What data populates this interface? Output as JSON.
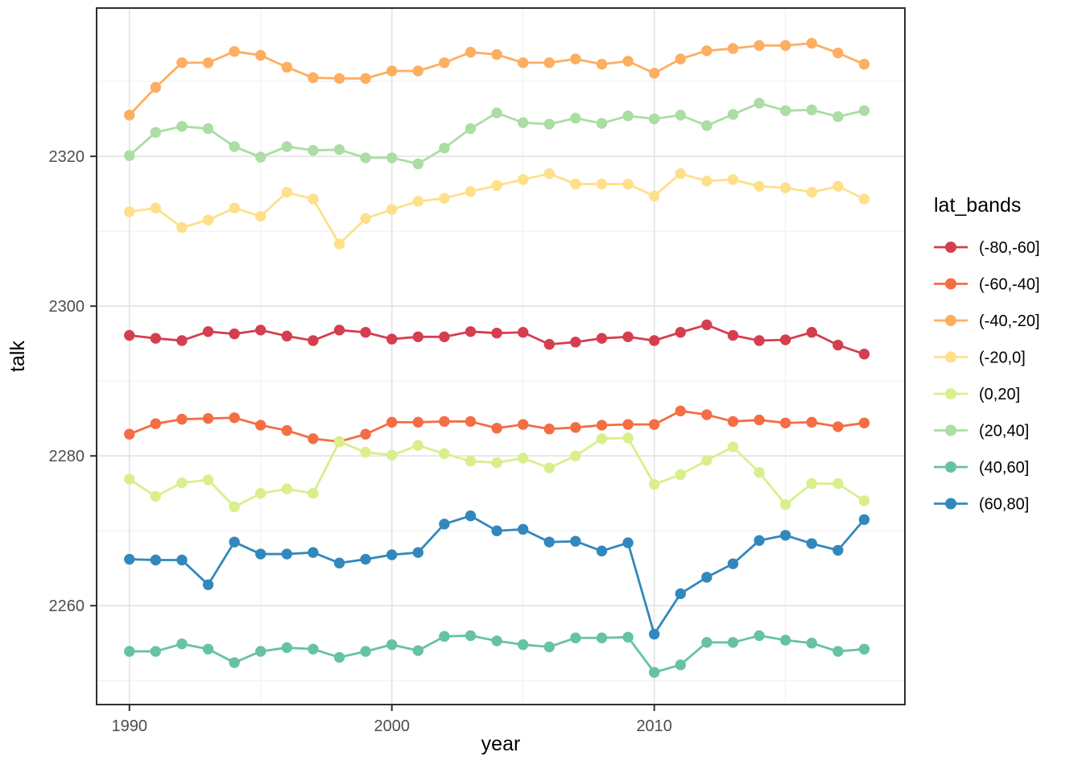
{
  "chart_data": {
    "type": "line",
    "title": "",
    "xlabel": "year",
    "ylabel": "talk",
    "legend_title": "lat_bands",
    "legend_position": "right",
    "grid": true,
    "marker": "point-on-line",
    "x": [
      1990,
      1991,
      1992,
      1993,
      1994,
      1995,
      1996,
      1997,
      1998,
      1999,
      2000,
      2001,
      2002,
      2003,
      2004,
      2005,
      2006,
      2007,
      2008,
      2009,
      2010,
      2011,
      2012,
      2013,
      2014,
      2015,
      2016,
      2017,
      2018
    ],
    "x_ticks": [
      1990,
      2000,
      2010
    ],
    "x_minor_ticks": [
      1995,
      2005,
      2015
    ],
    "y_ticks": [
      2260,
      2280,
      2300,
      2320
    ],
    "y_minor_ticks": [
      2250,
      2270,
      2290,
      2310,
      2330
    ],
    "xlim": [
      1988.75,
      2019.55
    ],
    "ylim": [
      2246.8,
      2339.8
    ],
    "series": [
      {
        "name": "(-80,-60]",
        "color": "#d53e4f",
        "values": [
          2296.1,
          2295.7,
          2295.4,
          2296.6,
          2296.3,
          2296.8,
          2296.0,
          2295.4,
          2296.8,
          2296.5,
          2295.6,
          2295.9,
          2295.9,
          2296.6,
          2296.4,
          2296.5,
          2294.9,
          2295.2,
          2295.7,
          2295.9,
          2295.4,
          2296.5,
          2297.5,
          2296.1,
          2295.4,
          2295.5,
          2296.5,
          2294.8,
          2293.6
        ]
      },
      {
        "name": "(-60,-40]",
        "color": "#f46d43",
        "values": [
          2282.9,
          2284.3,
          2284.9,
          2285.0,
          2285.1,
          2284.1,
          2283.4,
          2282.3,
          2281.9,
          2282.9,
          2284.5,
          2284.5,
          2284.6,
          2284.6,
          2283.7,
          2284.2,
          2283.6,
          2283.8,
          2284.1,
          2284.2,
          2284.2,
          2286.0,
          2285.5,
          2284.6,
          2284.8,
          2284.4,
          2284.5,
          2283.9,
          2284.4
        ]
      },
      {
        "name": "(-40,-20]",
        "color": "#fdae61",
        "values": [
          2325.5,
          2329.2,
          2332.5,
          2332.5,
          2334.0,
          2333.5,
          2331.9,
          2330.5,
          2330.4,
          2330.4,
          2331.4,
          2331.4,
          2332.5,
          2333.9,
          2333.6,
          2332.5,
          2332.5,
          2333.0,
          2332.3,
          2332.7,
          2331.1,
          2333.0,
          2334.1,
          2334.4,
          2334.8,
          2334.8,
          2335.1,
          2333.8,
          2332.3
        ]
      },
      {
        "name": "(-20,0]",
        "color": "#fee08b",
        "values": [
          2312.6,
          2313.1,
          2310.5,
          2311.5,
          2313.1,
          2312.0,
          2315.2,
          2314.3,
          2308.3,
          2311.7,
          2312.9,
          2314.0,
          2314.4,
          2315.3,
          2316.1,
          2316.9,
          2317.7,
          2316.3,
          2316.3,
          2316.3,
          2314.7,
          2317.7,
          2316.7,
          2316.9,
          2316.0,
          2315.8,
          2315.2,
          2316.0,
          2314.3
        ]
      },
      {
        "name": "(0,20]",
        "color": "#d9ef8b",
        "values": [
          2276.9,
          2274.6,
          2276.4,
          2276.8,
          2273.2,
          2275.0,
          2275.6,
          2275.0,
          2281.9,
          2280.5,
          2280.1,
          2281.4,
          2280.3,
          2279.3,
          2279.1,
          2279.7,
          2278.4,
          2280.0,
          2282.3,
          2282.4,
          2276.2,
          2277.5,
          2279.4,
          2281.2,
          2277.8,
          2273.5,
          2276.3,
          2276.3,
          2274.0
        ]
      },
      {
        "name": "(20,40]",
        "color": "#abdda4",
        "values": [
          2320.1,
          2323.2,
          2324.0,
          2323.7,
          2321.3,
          2319.9,
          2321.3,
          2320.8,
          2320.9,
          2319.8,
          2319.8,
          2319.0,
          2321.1,
          2323.7,
          2325.8,
          2324.5,
          2324.3,
          2325.1,
          2324.4,
          2325.4,
          2325.0,
          2325.5,
          2324.1,
          2325.6,
          2327.1,
          2326.1,
          2326.2,
          2325.3,
          2326.1
        ]
      },
      {
        "name": "(40,60]",
        "color": "#66c2a5",
        "values": [
          2253.9,
          2253.9,
          2254.9,
          2254.2,
          2252.4,
          2253.9,
          2254.4,
          2254.2,
          2253.1,
          2253.9,
          2254.8,
          2254.0,
          2255.9,
          2256.0,
          2255.3,
          2254.8,
          2254.5,
          2255.7,
          2255.7,
          2255.8,
          2251.1,
          2252.1,
          2255.1,
          2255.1,
          2256.0,
          2255.4,
          2255.0,
          2253.9,
          2254.2
        ]
      },
      {
        "name": "(60,80]",
        "color": "#3288bd",
        "values": [
          2266.2,
          2266.1,
          2266.1,
          2262.8,
          2268.5,
          2266.9,
          2266.9,
          2267.1,
          2265.7,
          2266.2,
          2266.8,
          2267.1,
          2270.9,
          2272.0,
          2270.0,
          2270.2,
          2268.5,
          2268.6,
          2267.3,
          2268.4,
          2256.2,
          2261.6,
          2263.8,
          2265.6,
          2268.7,
          2269.4,
          2268.3,
          2267.4,
          2271.5
        ]
      }
    ]
  },
  "style": {
    "panel_background": "#ffffff",
    "outer_background": "#ffffff",
    "panel_border_color": "#2f2f2f",
    "grid_major_color": "#e3e3e3",
    "grid_minor_color": "#f0f0f0",
    "tick_color": "#2f2f2f",
    "tick_label_color": "#4d4d4d"
  }
}
